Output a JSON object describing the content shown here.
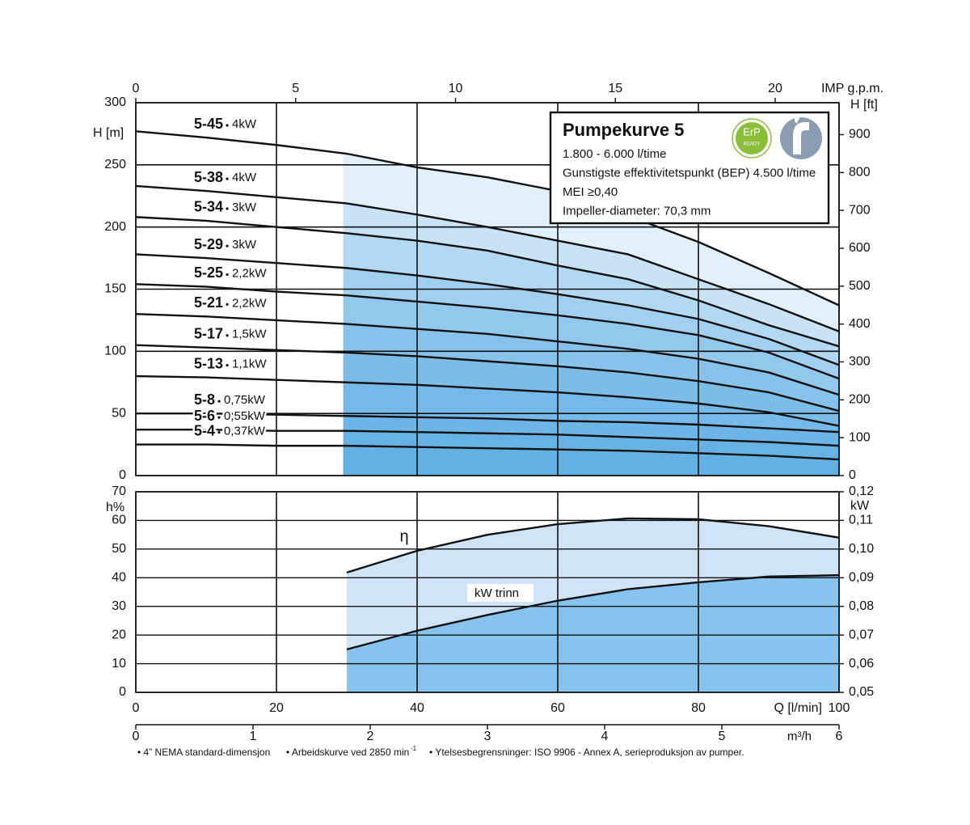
{
  "chart_data": [
    {
      "type": "line",
      "y_label": "H [m]",
      "y2_label": "H [ft]",
      "x2_label": "IMP g.p.m.",
      "x": [
        0,
        10,
        20,
        30,
        40,
        50,
        60,
        70,
        80,
        90,
        100
      ],
      "xlim": [
        0,
        100
      ],
      "ylim": [
        0,
        300
      ],
      "yticks": [
        0,
        50,
        100,
        150,
        200,
        250,
        300
      ],
      "y2lim": [
        0,
        984.25
      ],
      "y2ticks": [
        0,
        100,
        200,
        300,
        400,
        500,
        600,
        700,
        800,
        900
      ],
      "x2lim": [
        0,
        21.997
      ],
      "x2ticks": [
        0,
        5,
        10,
        15,
        20
      ],
      "operating_range": [
        29.5,
        100
      ],
      "fill_color": "#4fa8e3",
      "line_color": "#111111",
      "grid": true,
      "series": [
        {
          "name": "5-45",
          "power": "4kW",
          "values": [
            277,
            272,
            266,
            259,
            248,
            240,
            229,
            209,
            188,
            163,
            137
          ]
        },
        {
          "name": "5-38",
          "power": "4kW",
          "values": [
            233,
            229,
            224,
            219,
            210,
            200,
            189,
            178,
            158,
            138,
            116
          ]
        },
        {
          "name": "5-34",
          "power": "3kW",
          "values": [
            208,
            205,
            200,
            195,
            189,
            181,
            169,
            158,
            141,
            121,
            104
          ]
        },
        {
          "name": "5-29",
          "power": "3kW",
          "values": [
            178,
            175,
            171,
            167,
            161,
            154,
            146,
            137,
            126,
            110,
            89
          ]
        },
        {
          "name": "5-25",
          "power": "2,2kW",
          "values": [
            154,
            152,
            148,
            145,
            140,
            135,
            129,
            122,
            113,
            99,
            78
          ]
        },
        {
          "name": "5-21",
          "power": "2,2kW",
          "values": [
            130,
            128,
            125,
            122,
            118,
            114,
            108,
            102,
            94,
            83,
            65
          ]
        },
        {
          "name": "5-17",
          "power": "1,5kW",
          "values": [
            105,
            103,
            101,
            99,
            96,
            92,
            88,
            83,
            76,
            67,
            52
          ]
        },
        {
          "name": "5-13",
          "power": "1,1kW",
          "values": [
            80,
            79,
            77,
            75,
            73,
            70,
            67,
            63,
            58,
            51,
            40
          ]
        },
        {
          "name": "5-8",
          "power": "0,75kW",
          "values": [
            50,
            50,
            49,
            48,
            47,
            46,
            44,
            43,
            41,
            38,
            35
          ]
        },
        {
          "name": "5-6",
          "power": "0,55kW",
          "values": [
            37,
            37,
            36,
            36,
            35,
            34,
            33,
            31,
            29,
            27,
            24
          ]
        },
        {
          "name": "5-4",
          "power": "0,37kW",
          "values": [
            25,
            25,
            24,
            24,
            23,
            22,
            21,
            20,
            18,
            16,
            13
          ]
        }
      ],
      "info_box": {
        "title": "Pumpekurve 5",
        "lines": [
          "1.800 - 6.000 l/time",
          "Gunstigste effektivitetspunkt (BEP) 4.500 l/time",
          "MEI ≥0,40",
          "Impeller-diameter: 70,3 mm"
        ],
        "badge": [
          "ErP",
          "READY"
        ]
      }
    },
    {
      "type": "line",
      "y_label": "h%",
      "y2_label": "kW",
      "x_label": "Q [l/min]",
      "x2_label": "m³/h",
      "x": [
        30,
        40,
        50,
        60,
        70,
        80,
        90,
        100
      ],
      "xlim": [
        0,
        100
      ],
      "xticks": [
        0,
        20,
        40,
        60,
        80,
        100
      ],
      "x2lim": [
        0,
        6
      ],
      "x2ticks": [
        0,
        1,
        2,
        3,
        4,
        5,
        6
      ],
      "ylim": [
        0,
        70
      ],
      "yticks": [
        0,
        10,
        20,
        30,
        40,
        50,
        60,
        70
      ],
      "y2lim": [
        0.05,
        0.12
      ],
      "y2ticks": [
        {
          "value": 0.05,
          "label": "0,05"
        },
        {
          "value": 0.06,
          "label": "0,06"
        },
        {
          "value": 0.07,
          "label": "0,07"
        },
        {
          "value": 0.08,
          "label": "0,08"
        },
        {
          "value": 0.09,
          "label": "0,09"
        },
        {
          "value": 0.1,
          "label": "0,10"
        },
        {
          "value": 0.11,
          "label": "0,11"
        },
        {
          "value": 0.12,
          "label": "0,12"
        }
      ],
      "grid": true,
      "series": [
        {
          "name": "η",
          "color": "#cfe5f7",
          "values": [
            41.8,
            49.4,
            55,
            58.7,
            60.7,
            60.4,
            58,
            54
          ]
        },
        {
          "name": "kW trinn",
          "axis": "y2",
          "color": "#86c3ee",
          "values": [
            0.065,
            0.0715,
            0.077,
            0.082,
            0.086,
            0.0884,
            0.0904,
            0.0909
          ]
        }
      ]
    }
  ],
  "notes": [
    "• 4” NEMA standard-dimensjon",
    "• Arbeidskurve ved 2850 min",
    "-1",
    "• Ytelsesbegrensninger: ISO 9906 - Annex A, serieproduksjon av pumper."
  ]
}
